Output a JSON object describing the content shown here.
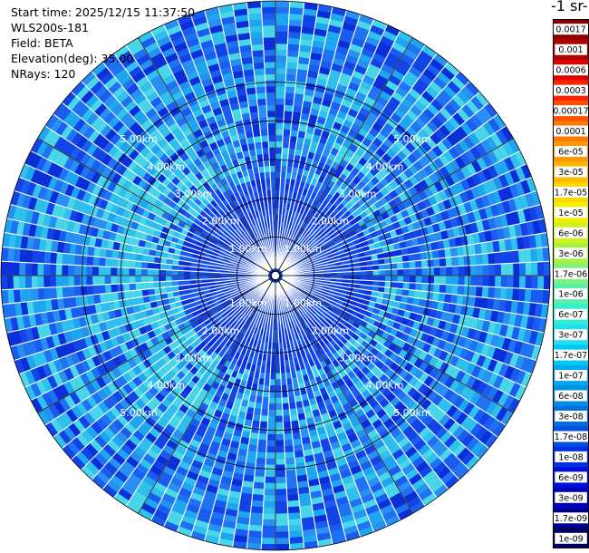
{
  "header": {
    "start_time": "Start time: 2025/12/15 11:37:50",
    "instrument": "WLS200s-181",
    "field": "Field: BETA",
    "elevation": "Elevation(deg): 35.00",
    "nrays": "NRays: 120"
  },
  "colorbar": {
    "title": "-1 sr-",
    "labels": [
      "0.0017",
      "0.001",
      "0.0006",
      "0.0003",
      "0.00017",
      "0.0001",
      "6e-05",
      "3e-05",
      "1.7e-05",
      "1e-05",
      "6e-06",
      "3e-06",
      "1.7e-06",
      "1e-06",
      "6e-07",
      "3e-07",
      "1.7e-07",
      "1e-07",
      "6e-08",
      "3e-08",
      "1.7e-08",
      "1e-08",
      "6e-09",
      "3e-09",
      "1.7e-09",
      "1e-09"
    ],
    "colors": [
      "#8b0000",
      "#b20000",
      "#dc0000",
      "#ff2000",
      "#ff5000",
      "#ff7800",
      "#ff9800",
      "#ffb800",
      "#ffd800",
      "#f0f000",
      "#d0f020",
      "#a8f040",
      "#80f080",
      "#58f0a8",
      "#30f0d0",
      "#20e0f0",
      "#00c8f0",
      "#00a8f0",
      "#0090e0",
      "#0070e0",
      "#0050e0",
      "#0030e0",
      "#0010d8",
      "#0000c0",
      "#000090",
      "#000060"
    ],
    "color_scale": "log"
  },
  "chart_data": {
    "type": "heatmap",
    "projection": "polar PPI",
    "field": "BETA",
    "elevation_deg": 35.0,
    "n_rays": 120,
    "range_rings": [
      {
        "label": "1.00km",
        "km": 1.0
      },
      {
        "label": "2.00km",
        "km": 2.0
      },
      {
        "label": "3.00km",
        "km": 3.0
      },
      {
        "label": "4.00km",
        "km": 4.0
      },
      {
        "label": "5.00km",
        "km": 5.0
      }
    ],
    "max_range_km": 7.1,
    "grid_azimuths_deg": [
      0,
      30,
      60,
      90,
      120,
      150,
      180,
      210,
      240,
      270,
      300,
      330
    ]
  }
}
